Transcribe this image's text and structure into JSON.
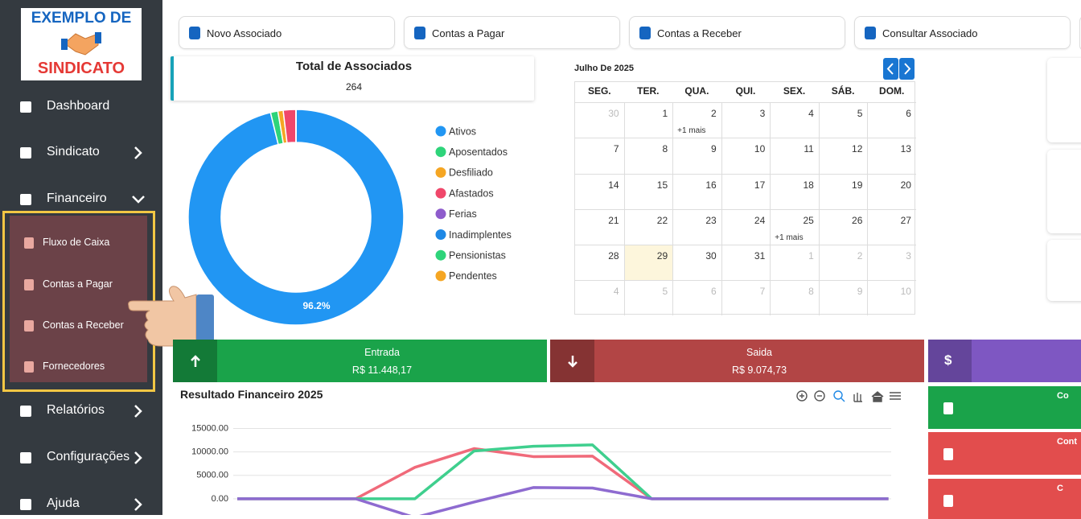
{
  "sidebar": {
    "logo": [
      "EXEMPLO DE",
      "SINDICATO"
    ],
    "menu": [
      "Dashboard",
      "Sindicato",
      "Financeiro"
    ],
    "submenu": [
      "Fluxo de Caixa",
      "Contas a Pagar",
      "Contas a Receber",
      "Fornecedores"
    ],
    "menu_bottom": [
      "Relatórios",
      "Configurações",
      "Ajuda"
    ]
  },
  "toolbar": [
    "Novo Associado",
    "Contas a Pagar",
    "Contas a Receber",
    "Consultar Associado"
  ],
  "summary": {
    "title": "Total de Associados",
    "value": 264
  },
  "donut": {
    "type": "pie",
    "categories": [
      "Ativos",
      "Aposentados",
      "Desfiliado",
      "Afastados",
      "Ferias",
      "Inadimplentes",
      "Pensionistas",
      "Pendentes"
    ],
    "values": [
      96.2,
      1.1,
      0.8,
      1.9,
      0,
      0,
      0,
      0
    ],
    "value_labels": [
      "96.2%",
      null,
      null,
      null,
      null,
      null,
      null,
      null
    ],
    "colors": [
      "#2196f3",
      "#2ed47a",
      "#f5a623",
      "#f0476a",
      "#8e5ccc",
      "#1e88e5",
      "#2ed47a",
      "#f5a623"
    ]
  },
  "calendar": {
    "title": "Julho De 2025",
    "weekdays": [
      "SEG.",
      "TER.",
      "QUA.",
      "QUI.",
      "SEX.",
      "SÁB.",
      "DOM."
    ],
    "weeks": [
      [
        {
          "day": 30
        },
        {
          "day": 1
        },
        {
          "day": 2,
          "more": "+1 mais"
        },
        {
          "day": 3
        },
        {
          "day": 4
        },
        {
          "day": 5
        },
        {
          "day": 6
        }
      ],
      [
        {
          "day": 7
        },
        {
          "day": 8
        },
        {
          "day": 9
        },
        {
          "day": 10
        },
        {
          "day": 11
        },
        {
          "day": 12
        },
        {
          "day": 13
        }
      ],
      [
        {
          "day": 14
        },
        {
          "day": 15
        },
        {
          "day": 16
        },
        {
          "day": 17
        },
        {
          "day": 18
        },
        {
          "day": 19
        },
        {
          "day": 20
        }
      ],
      [
        {
          "day": 21
        },
        {
          "day": 22
        },
        {
          "day": 23
        },
        {
          "day": 24
        },
        {
          "day": 25,
          "more": "+1 mais"
        },
        {
          "day": 26
        },
        {
          "day": 27
        }
      ],
      [
        {
          "day": 28
        },
        {
          "day": 29
        },
        {
          "day": 30
        },
        {
          "day": 31
        },
        {
          "day": 1
        },
        {
          "day": 2
        },
        {
          "day": 3
        }
      ],
      [
        {
          "day": 4
        },
        {
          "day": 5
        },
        {
          "day": 6
        },
        {
          "day": 7
        },
        {
          "day": 8
        },
        {
          "day": 9
        },
        {
          "day": 10
        }
      ]
    ]
  },
  "totals": [
    {
      "label": "Entrada",
      "value": "R$ 11.448,17",
      "color": "#1aa34a"
    },
    {
      "label": "Saida",
      "value": "R$ 9.074,73",
      "color": "#b24545"
    }
  ],
  "side_cards": [
    {
      "text": "$",
      "color": "#7e57c2"
    },
    {
      "text": "Co",
      "color": "#1aa34a"
    },
    {
      "text": "Cont",
      "color": "#e24d4d"
    },
    {
      "text": "C",
      "color": "#e24d4d"
    }
  ],
  "line_chart": {
    "type": "line",
    "title": "Resultado Financeiro 2025",
    "categories": [
      null,
      null,
      null,
      null,
      null,
      null,
      null,
      null,
      null,
      null,
      null,
      null
    ],
    "ylim": [
      -3400,
      18000
    ],
    "yticks": [
      {
        "value": 0,
        "label": "0.00"
      },
      {
        "value": 5000,
        "label": "5000.00"
      },
      {
        "value": 10000,
        "label": "10000.00"
      },
      {
        "value": 15000,
        "label": "15000.00"
      }
    ],
    "grid": true,
    "series": [
      {
        "color": "#f06a7a",
        "values": [
          0,
          0,
          0,
          6700,
          10700,
          9000,
          9100,
          0,
          0,
          0,
          0,
          0
        ]
      },
      {
        "color": "#3fcf8e",
        "values": [
          0,
          0,
          0,
          0,
          10200,
          11200,
          11500,
          0,
          0,
          0,
          0,
          0
        ]
      },
      {
        "color": "#8e6bd0",
        "values": [
          0,
          0,
          0,
          -4000,
          -700,
          2400,
          2300,
          0,
          0,
          0,
          0,
          0
        ]
      }
    ]
  }
}
